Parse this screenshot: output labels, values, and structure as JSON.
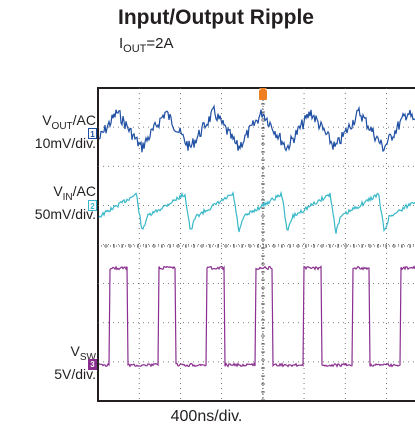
{
  "chart_data": {
    "type": "line",
    "title": "Input/Output Ripple",
    "subtitle": {
      "base": "I",
      "sub": "OUT",
      "rest": "=2A"
    },
    "xlabel": "400ns/div.",
    "channels": [
      {
        "id": "1",
        "name_base": "V",
        "name_sub": "OUT",
        "name_rest": "/AC",
        "scale": "10mV/div.",
        "color": "#1f4fa3",
        "waveform": "triangle_ripple"
      },
      {
        "id": "2",
        "name_base": "V",
        "name_sub": "IN",
        "name_rest": "/AC",
        "scale": "50mV/div.",
        "color": "#38b8c8",
        "waveform": "sawtooth_ripple"
      },
      {
        "id": "3",
        "name_base": "V",
        "name_sub": "SW",
        "name_rest": "",
        "scale": "5V/div.",
        "color": "#8a2f8f",
        "waveform": "square_switching"
      }
    ],
    "grid": true,
    "divisions": {
      "x": 10,
      "y": 8
    },
    "time_per_div_ns": 400,
    "switching_period_ns": 470,
    "trigger_color": "#f07f1f"
  }
}
